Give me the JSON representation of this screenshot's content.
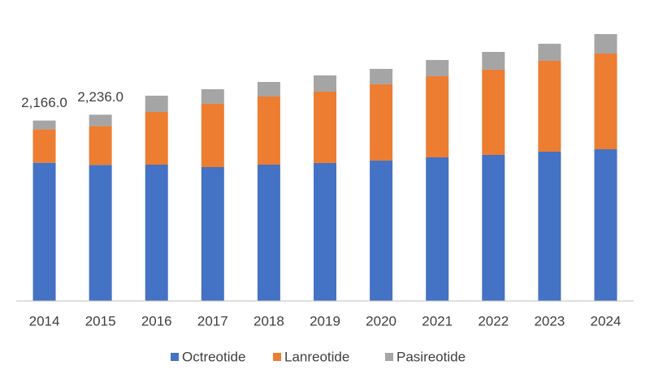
{
  "chart_data": {
    "type": "stacked-bar",
    "categories": [
      "2014",
      "2015",
      "2016",
      "2017",
      "2018",
      "2019",
      "2020",
      "2021",
      "2022",
      "2023",
      "2024"
    ],
    "series": [
      {
        "name": "Octreotide",
        "color": "#4472c4",
        "values": [
          1659,
          1633,
          1636,
          1607,
          1636,
          1656,
          1685,
          1724,
          1753,
          1792,
          1821
        ]
      },
      {
        "name": "Lanreotide",
        "color": "#ed7d31",
        "values": [
          400,
          467,
          633,
          760,
          818,
          857,
          916,
          974,
          1023,
          1091,
          1149
        ]
      },
      {
        "name": "Pasireotide",
        "color": "#a5a5a5",
        "values": [
          107,
          136,
          195,
          175,
          175,
          195,
          185,
          195,
          214,
          205,
          234
        ]
      }
    ],
    "totals": [
      2166.0,
      2236.0,
      null,
      null,
      null,
      null,
      null,
      null,
      null,
      null,
      null
    ],
    "total_labels": [
      "2,166.0",
      "2,236.0",
      null,
      null,
      null,
      null,
      null,
      null,
      null,
      null,
      null
    ],
    "legend": "bottom"
  }
}
